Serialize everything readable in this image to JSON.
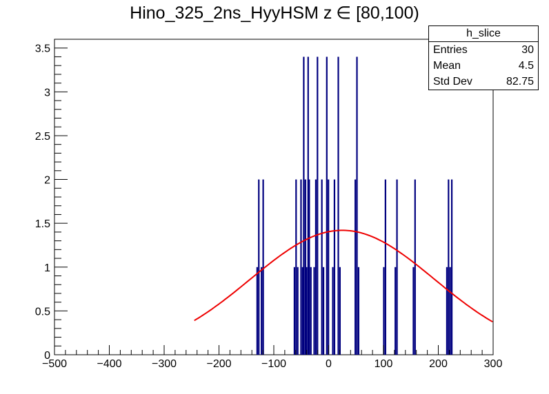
{
  "chart_data": {
    "type": "bar",
    "title_name": "Hino_325_2ns_HyyHSM z",
    "title_range": "∈ [80,100)",
    "xlim": [
      -500,
      300
    ],
    "ylim": [
      0,
      3.6
    ],
    "x_tick_labels": [
      "−500",
      "−400",
      "−300",
      "−200",
      "−100",
      "0",
      "100",
      "200",
      "300"
    ],
    "x_ticks": [
      -500,
      -400,
      -300,
      -200,
      -100,
      0,
      100,
      200,
      300
    ],
    "y_tick_labels": [
      "0",
      "0.5",
      "1",
      "1.5",
      "2",
      "2.5",
      "3",
      "3.5"
    ],
    "y_ticks": [
      0,
      0.5,
      1,
      1.5,
      2,
      2.5,
      3,
      3.5
    ],
    "bars": [
      {
        "x": -131,
        "y": 1
      },
      {
        "x": -128,
        "y": 2
      },
      {
        "x": -123,
        "y": 1
      },
      {
        "x": -120,
        "y": 2
      },
      {
        "x": -63,
        "y": 1
      },
      {
        "x": -60,
        "y": 2
      },
      {
        "x": -57,
        "y": 1
      },
      {
        "x": -51,
        "y": 2
      },
      {
        "x": -48,
        "y": 1
      },
      {
        "x": -46,
        "y": 3.4
      },
      {
        "x": -43,
        "y": 2
      },
      {
        "x": -41,
        "y": 1
      },
      {
        "x": -38,
        "y": 3.4
      },
      {
        "x": -36,
        "y": 2
      },
      {
        "x": -33,
        "y": 1
      },
      {
        "x": -27,
        "y": 1
      },
      {
        "x": -24,
        "y": 2
      },
      {
        "x": -21,
        "y": 3.4
      },
      {
        "x": -13,
        "y": 2
      },
      {
        "x": -10,
        "y": 1
      },
      {
        "x": -4,
        "y": 3.4
      },
      {
        "x": -1,
        "y": 2
      },
      {
        "x": 7,
        "y": 1
      },
      {
        "x": 10,
        "y": 2
      },
      {
        "x": 17,
        "y": 3.4
      },
      {
        "x": 20,
        "y": 1
      },
      {
        "x": 48,
        "y": 2
      },
      {
        "x": 51,
        "y": 3.4
      },
      {
        "x": 54,
        "y": 1
      },
      {
        "x": 100,
        "y": 1
      },
      {
        "x": 103,
        "y": 2
      },
      {
        "x": 121,
        "y": 1
      },
      {
        "x": 124,
        "y": 2
      },
      {
        "x": 154,
        "y": 1
      },
      {
        "x": 157,
        "y": 2
      },
      {
        "x": 215,
        "y": 1
      },
      {
        "x": 218,
        "y": 2
      },
      {
        "x": 221,
        "y": 1
      },
      {
        "x": 224,
        "y": 2
      }
    ],
    "fit": {
      "type": "gaussian",
      "amplitude": 1.42,
      "mean": 25,
      "sigma": 168,
      "x_range": [
        -245,
        300
      ]
    },
    "colors": {
      "bars": "#00007f",
      "fit": "#ee0000"
    }
  },
  "stats": {
    "name": "h_slice",
    "entries_label": "Entries",
    "entries_value": "30",
    "mean_label": "Mean",
    "mean_value": "4.5",
    "std_label": "Std Dev",
    "std_value": "82.75"
  }
}
